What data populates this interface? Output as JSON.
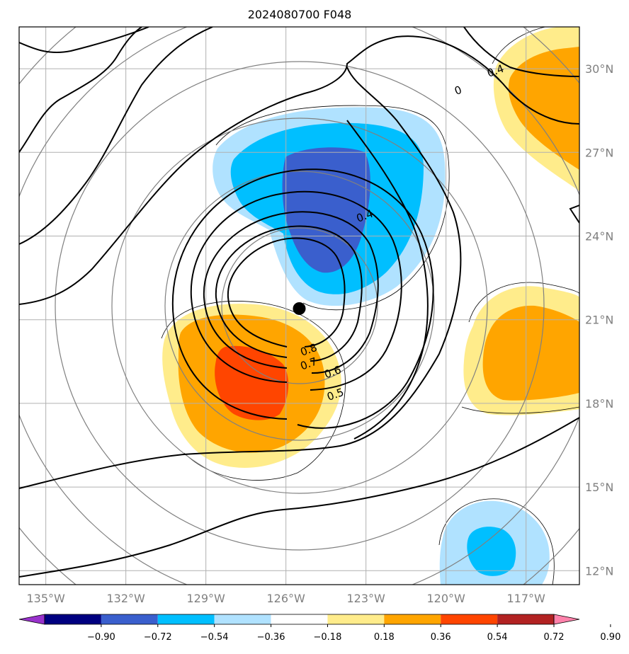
{
  "title": "2024080700 F048",
  "map": {
    "lon_range": [
      -136,
      -115
    ],
    "lat_range": [
      11.5,
      31.5
    ],
    "grid": true,
    "center_marker": {
      "lon": -125.5,
      "lat": 21.4
    },
    "lon_ticks": [
      {
        "value": -135,
        "label": "135°W"
      },
      {
        "value": -132,
        "label": "132°W"
      },
      {
        "value": -129,
        "label": "129°W"
      },
      {
        "value": -126,
        "label": "126°W"
      },
      {
        "value": -123,
        "label": "123°W"
      },
      {
        "value": -120,
        "label": "120°W"
      },
      {
        "value": -117,
        "label": "117°W"
      }
    ],
    "lat_ticks": [
      {
        "value": 30,
        "label": "30°N"
      },
      {
        "value": 27,
        "label": "27°N"
      },
      {
        "value": 24,
        "label": "24°N"
      },
      {
        "value": 21,
        "label": "21°N"
      },
      {
        "value": 18,
        "label": "18°N"
      },
      {
        "value": 15,
        "label": "15°N"
      },
      {
        "value": 12,
        "label": "12°N"
      }
    ],
    "contour_labels": [
      {
        "text": "0.8",
        "lon": -125.1,
        "lat": 19.8
      },
      {
        "text": "0.7",
        "lon": -125.1,
        "lat": 19.3
      },
      {
        "text": "0.6",
        "lon": -124.2,
        "lat": 19.0
      },
      {
        "text": "0.5",
        "lon": -124.1,
        "lat": 18.2
      },
      {
        "text": "0.4",
        "lon": -123.0,
        "lat": 24.6
      },
      {
        "text": "0.4",
        "lon": -118.1,
        "lat": 29.8
      },
      {
        "text": "0",
        "lon": -119.5,
        "lat": 29.1
      }
    ]
  },
  "colorbar": {
    "extend": "both",
    "levels": [
      "−0.90",
      "−0.72",
      "−0.54",
      "−0.36",
      "−0.18",
      "0.18",
      "0.36",
      "0.54",
      "0.72",
      "0.90"
    ],
    "colors": [
      "#9932cc",
      "#000080",
      "#3a5fcd",
      "#00bfff",
      "#b0e2ff",
      "#ffffff",
      "#ffec8b",
      "#ffa500",
      "#ff4500",
      "#b22222",
      "#ff82ab"
    ]
  }
}
